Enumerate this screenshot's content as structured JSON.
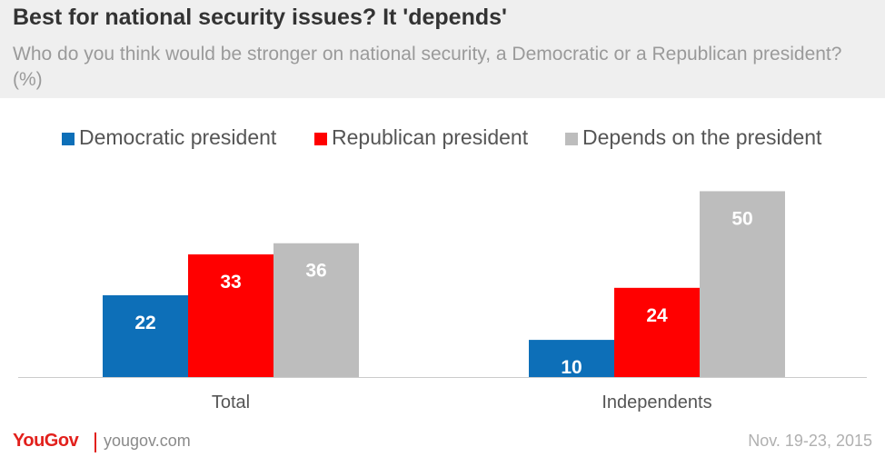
{
  "header": {
    "title": "Best for national security issues? It 'depends'",
    "subtitle": "Who do you think would be stronger on national security, a Democratic or a Republican president? (%)"
  },
  "legend": {
    "items": [
      {
        "label": "Democratic president",
        "color": "#0d6fb8"
      },
      {
        "label": "Republican president",
        "color": "#ff0000"
      },
      {
        "label": "Depends on the president",
        "color": "#bdbdbd"
      }
    ]
  },
  "chart_data": {
    "type": "bar",
    "categories": [
      "Total",
      "Independents"
    ],
    "series": [
      {
        "name": "Democratic president",
        "values": [
          22,
          10
        ],
        "color": "#0d6fb8"
      },
      {
        "name": "Republican president",
        "values": [
          33,
          24
        ],
        "color": "#ff0000"
      },
      {
        "name": "Depends on the president",
        "values": [
          36,
          50
        ],
        "color": "#bdbdbd"
      }
    ],
    "ylim": [
      0,
      55
    ],
    "grid": false,
    "legend_position": "top"
  },
  "footer": {
    "logo": "YouGov",
    "site": "yougov.com",
    "date": "Nov. 19-23, 2015"
  }
}
